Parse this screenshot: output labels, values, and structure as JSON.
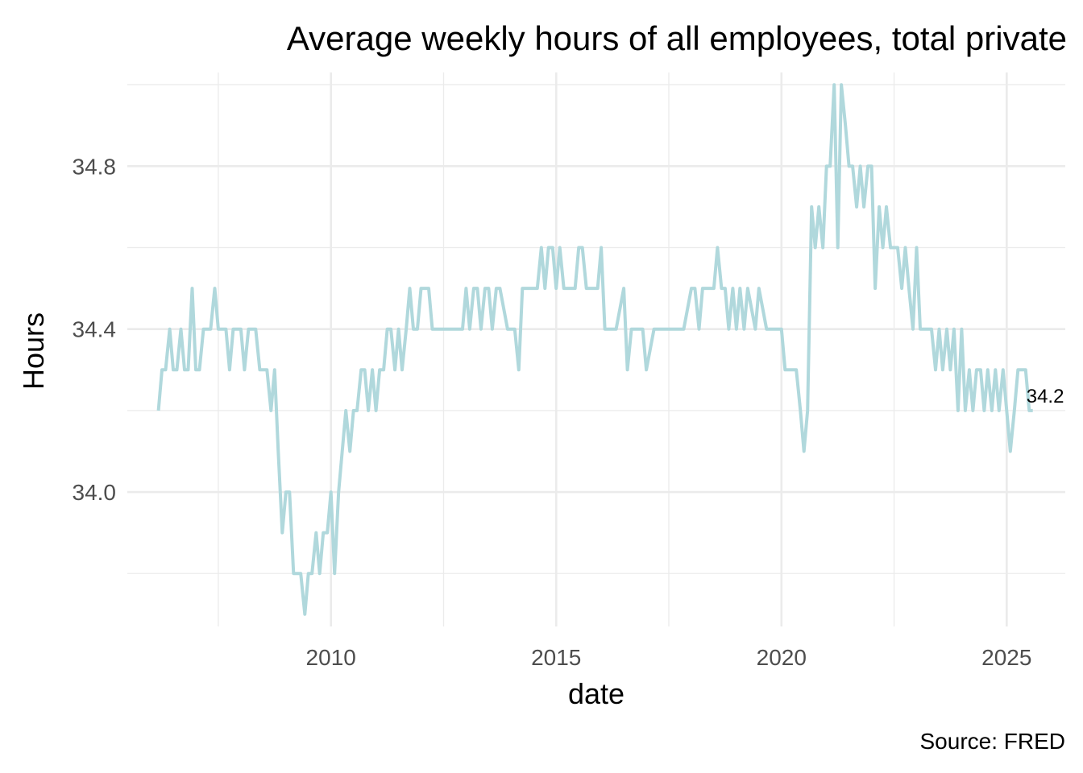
{
  "chart_data": {
    "type": "line",
    "title": "Average weekly hours of all employees, total private",
    "xlabel": "date",
    "ylabel": "Hours",
    "caption": "Source: FRED",
    "end_label": "34.2",
    "line_color": "#b0d8dc",
    "grid": true,
    "x_ticks": [
      2010,
      2015,
      2020,
      2025
    ],
    "y_ticks": [
      34.0,
      34.4,
      34.8
    ],
    "x_tick_labels": [
      "2010",
      "2015",
      "2020",
      "2025"
    ],
    "y_tick_labels": [
      "34.0",
      "34.4",
      "34.8"
    ],
    "xlim": [
      2005.48,
      2026.3
    ],
    "ylim": [
      33.67,
      35.03
    ],
    "series": [
      {
        "x": [
          2006.17,
          2006.25,
          2006.33,
          2006.42,
          2006.5,
          2006.58,
          2006.67,
          2006.75,
          2006.83,
          2006.92,
          2007.0,
          2007.08,
          2007.17,
          2007.25,
          2007.33,
          2007.42,
          2007.5,
          2007.58,
          2007.67,
          2007.75,
          2007.83,
          2007.92,
          2008.0,
          2008.08,
          2008.17,
          2008.25,
          2008.33,
          2008.42,
          2008.5,
          2008.58,
          2008.67,
          2008.75,
          2008.83,
          2008.92,
          2009.0,
          2009.08,
          2009.17,
          2009.25,
          2009.33,
          2009.42,
          2009.5,
          2009.58,
          2009.67,
          2009.75,
          2009.83,
          2009.92,
          2010.0,
          2010.08,
          2010.17,
          2010.25,
          2010.33,
          2010.42,
          2010.5,
          2010.58,
          2010.67,
          2010.75,
          2010.83,
          2010.92,
          2011.0,
          2011.08,
          2011.17,
          2011.25,
          2011.33,
          2011.42,
          2011.5,
          2011.58,
          2011.67,
          2011.75,
          2011.83,
          2011.92,
          2012.0,
          2012.08,
          2012.17,
          2012.25,
          2012.5,
          2012.75,
          2012.92,
          2013.0,
          2013.08,
          2013.17,
          2013.25,
          2013.33,
          2013.42,
          2013.5,
          2013.58,
          2013.67,
          2013.75,
          2013.92,
          2014.0,
          2014.08,
          2014.17,
          2014.25,
          2014.5,
          2014.58,
          2014.67,
          2014.75,
          2014.83,
          2014.92,
          2015.0,
          2015.08,
          2015.17,
          2015.25,
          2015.42,
          2015.5,
          2015.58,
          2015.67,
          2015.83,
          2015.92,
          2016.0,
          2016.08,
          2016.17,
          2016.33,
          2016.5,
          2016.58,
          2016.67,
          2016.75,
          2016.83,
          2016.92,
          2017.0,
          2017.17,
          2017.33,
          2017.42,
          2017.5,
          2017.58,
          2017.83,
          2018.0,
          2018.08,
          2018.17,
          2018.25,
          2018.33,
          2018.5,
          2018.58,
          2018.67,
          2018.75,
          2018.83,
          2018.92,
          2019.0,
          2019.08,
          2019.17,
          2019.25,
          2019.42,
          2019.5,
          2019.67,
          2019.75,
          2019.92,
          2020.0,
          2020.08,
          2020.17,
          2020.25,
          2020.33,
          2020.42,
          2020.5,
          2020.58,
          2020.67,
          2020.75,
          2020.83,
          2020.92,
          2021.0,
          2021.08,
          2021.17,
          2021.25,
          2021.33,
          2021.42,
          2021.5,
          2021.58,
          2021.67,
          2021.75,
          2021.83,
          2021.92,
          2022.0,
          2022.08,
          2022.17,
          2022.25,
          2022.33,
          2022.42,
          2022.5,
          2022.58,
          2022.67,
          2022.75,
          2022.83,
          2022.92,
          2023.0,
          2023.08,
          2023.17,
          2023.25,
          2023.33,
          2023.42,
          2023.5,
          2023.58,
          2023.67,
          2023.75,
          2023.83,
          2023.92,
          2024.0,
          2024.08,
          2024.17,
          2024.25,
          2024.33,
          2024.42,
          2024.5,
          2024.58,
          2024.67,
          2024.75,
          2024.83,
          2024.92,
          2025.0,
          2025.08,
          2025.17,
          2025.25,
          2025.33,
          2025.42,
          2025.5,
          2025.58
        ],
        "y": [
          34.2,
          34.3,
          34.3,
          34.4,
          34.3,
          34.3,
          34.4,
          34.3,
          34.3,
          34.5,
          34.3,
          34.3,
          34.4,
          34.4,
          34.4,
          34.5,
          34.4,
          34.4,
          34.4,
          34.3,
          34.4,
          34.4,
          34.4,
          34.3,
          34.4,
          34.4,
          34.4,
          34.3,
          34.3,
          34.3,
          34.2,
          34.3,
          34.1,
          33.9,
          34.0,
          34.0,
          33.8,
          33.8,
          33.8,
          33.7,
          33.8,
          33.8,
          33.9,
          33.8,
          33.9,
          33.9,
          34.0,
          33.8,
          34.0,
          34.1,
          34.2,
          34.1,
          34.2,
          34.2,
          34.3,
          34.3,
          34.2,
          34.3,
          34.2,
          34.3,
          34.3,
          34.4,
          34.4,
          34.3,
          34.4,
          34.3,
          34.4,
          34.5,
          34.4,
          34.4,
          34.5,
          34.5,
          34.5,
          34.4,
          34.4,
          34.4,
          34.4,
          34.5,
          34.4,
          34.5,
          34.5,
          34.4,
          34.5,
          34.5,
          34.4,
          34.5,
          34.5,
          34.4,
          34.4,
          34.4,
          34.3,
          34.5,
          34.5,
          34.5,
          34.6,
          34.5,
          34.6,
          34.6,
          34.5,
          34.6,
          34.5,
          34.5,
          34.5,
          34.6,
          34.6,
          34.5,
          34.5,
          34.5,
          34.6,
          34.4,
          34.4,
          34.4,
          34.5,
          34.3,
          34.4,
          34.4,
          34.4,
          34.4,
          34.3,
          34.4,
          34.4,
          34.4,
          34.4,
          34.4,
          34.4,
          34.5,
          34.5,
          34.4,
          34.5,
          34.5,
          34.5,
          34.6,
          34.5,
          34.5,
          34.4,
          34.5,
          34.4,
          34.5,
          34.4,
          34.5,
          34.4,
          34.5,
          34.4,
          34.4,
          34.4,
          34.4,
          34.3,
          34.3,
          34.3,
          34.3,
          34.2,
          34.1,
          34.2,
          34.7,
          34.6,
          34.7,
          34.6,
          34.8,
          34.8,
          35.0,
          34.6,
          35.0,
          34.9,
          34.8,
          34.8,
          34.7,
          34.8,
          34.7,
          34.8,
          34.8,
          34.5,
          34.7,
          34.6,
          34.7,
          34.6,
          34.6,
          34.6,
          34.5,
          34.6,
          34.5,
          34.4,
          34.6,
          34.4,
          34.4,
          34.4,
          34.4,
          34.3,
          34.4,
          34.3,
          34.4,
          34.3,
          34.4,
          34.2,
          34.4,
          34.2,
          34.3,
          34.2,
          34.3,
          34.3,
          34.2,
          34.3,
          34.2,
          34.3,
          34.2,
          34.3,
          34.2,
          34.1,
          34.2,
          34.3,
          34.3,
          34.3,
          34.2,
          34.2
        ]
      }
    ]
  }
}
